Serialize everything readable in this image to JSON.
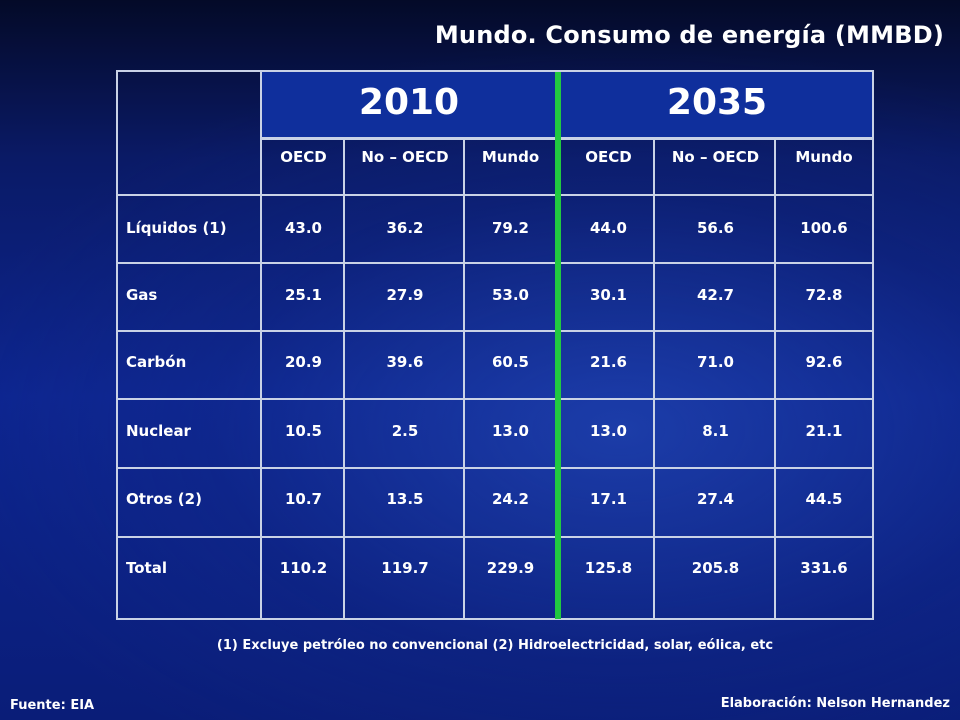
{
  "title": "Mundo. Consumo de energía (MMBD)",
  "years": [
    "2010",
    "2035"
  ],
  "column_headers": [
    "OECD",
    "No – OECD",
    "Mundo",
    "OECD",
    "No – OECD",
    "Mundo"
  ],
  "rows": [
    {
      "label": "Líquidos (1)",
      "values": [
        "43.0",
        "36.2",
        "79.2",
        "44.0",
        "56.6",
        "100.6"
      ]
    },
    {
      "label": "Gas",
      "values": [
        "25.1",
        "27.9",
        "53.0",
        "30.1",
        "42.7",
        "72.8"
      ]
    },
    {
      "label": "Carbón",
      "values": [
        "20.9",
        "39.6",
        "60.5",
        "21.6",
        "71.0",
        "92.6"
      ]
    },
    {
      "label": "Nuclear",
      "values": [
        "10.5",
        "2.5",
        "13.0",
        "13.0",
        "8.1",
        "21.1"
      ]
    },
    {
      "label": "Otros (2)",
      "values": [
        "10.7",
        "13.5",
        "24.2",
        "17.1",
        "27.4",
        "44.5"
      ]
    },
    {
      "label": "Total",
      "values": [
        "110.2",
        "119.7",
        "229.9",
        "125.8",
        "205.8",
        "331.6"
      ]
    }
  ],
  "footnote": "(1) Excluye petróleo no convencional  (2) Hidroelectricidad, solar, eólica, etc",
  "source": "Fuente: EIA",
  "credit": "Elaboración: Nelson Hernandez",
  "colors": {
    "background": "#0d2590",
    "header_band": "#0f2f9c",
    "divider": "#22c940",
    "grid": "#c9d2e6",
    "text": "#ffffff"
  }
}
